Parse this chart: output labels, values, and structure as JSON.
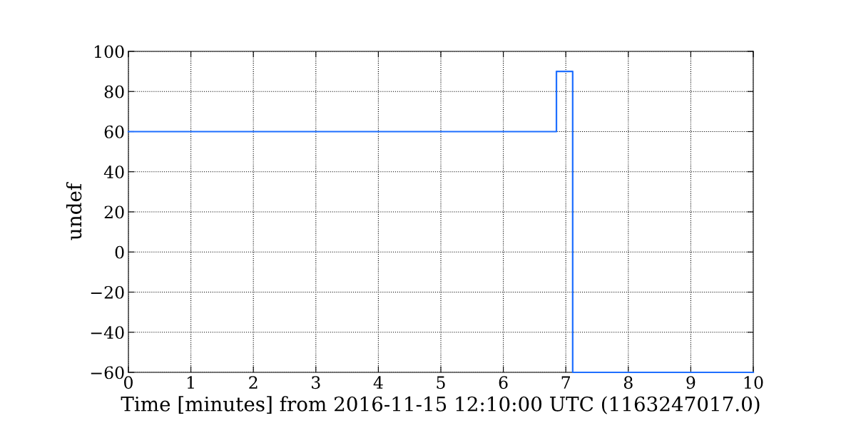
{
  "chart_data": {
    "type": "step",
    "xlabel": "Time [minutes] from 2016-11-15 12:10:00 UTC (1163247017.0)",
    "ylabel": "undef",
    "x": [
      0,
      6.85,
      7.11,
      10
    ],
    "series": [
      {
        "color": "#1f6fff",
        "values": [
          60,
          90,
          -60,
          -60
        ]
      }
    ],
    "xlim": [
      0,
      10
    ],
    "xticks": [
      0,
      1,
      2,
      3,
      4,
      5,
      6,
      7,
      8,
      9,
      10
    ],
    "ylim": [
      -60,
      100
    ],
    "yticks": [
      {
        "value": -60,
        "label": "−60"
      },
      {
        "value": -40,
        "label": "−40"
      },
      {
        "value": -20,
        "label": "−20"
      },
      0,
      20,
      40,
      60,
      80,
      100
    ],
    "grid": true,
    "line_style": "solid",
    "marker": "none"
  }
}
